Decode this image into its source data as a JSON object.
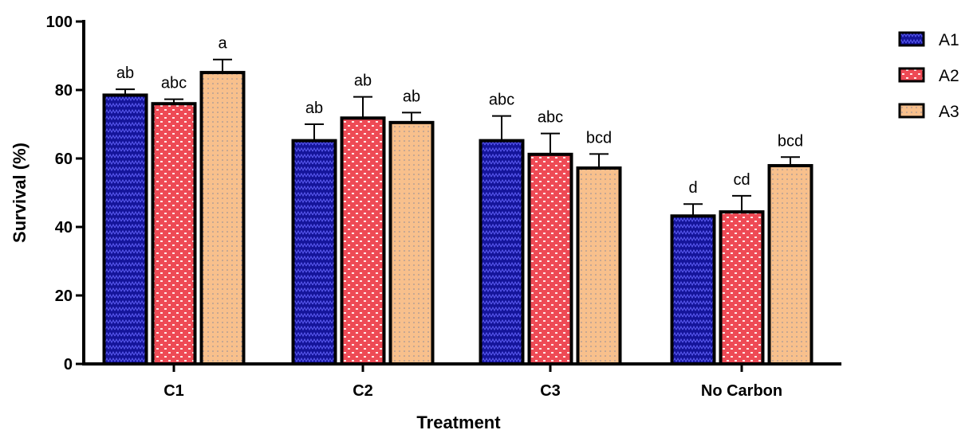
{
  "chart_data": {
    "type": "bar",
    "xlabel": "Treatment",
    "ylabel": "Survival (%)",
    "ylim": [
      0,
      100
    ],
    "yticks": [
      0,
      20,
      40,
      60,
      80,
      100
    ],
    "categories": [
      "C1",
      "C2",
      "C3",
      "No Carbon"
    ],
    "series": [
      {
        "name": "A1",
        "color": "#1a1aa6",
        "values": [
          78.5,
          65.2,
          65.2,
          43.2
        ],
        "errors": [
          1.7,
          4.8,
          7.2,
          3.5
        ],
        "labels": [
          "ab",
          "ab",
          "abc",
          "d"
        ]
      },
      {
        "name": "A2",
        "color": "#f0505a",
        "values": [
          76,
          71.8,
          61.2,
          44.4
        ],
        "errors": [
          1.3,
          6.2,
          6.1,
          4.7
        ],
        "labels": [
          "abc",
          "ab",
          "abc",
          "cd"
        ]
      },
      {
        "name": "A3",
        "color": "#f8c08c",
        "values": [
          85.1,
          70.5,
          57.2,
          57.9
        ],
        "errors": [
          3.8,
          2.9,
          4.1,
          2.5
        ],
        "labels": [
          "a",
          "ab",
          "bcd",
          "bcd"
        ]
      }
    ],
    "legend_position": "top-right"
  }
}
